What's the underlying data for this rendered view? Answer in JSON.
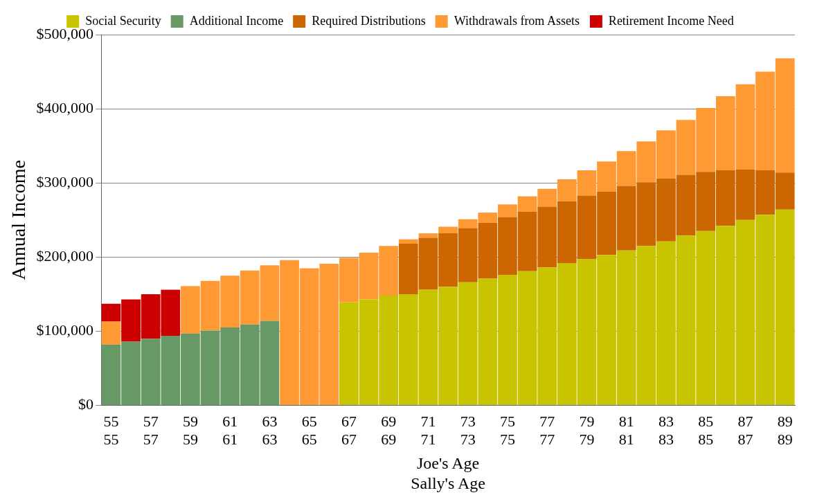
{
  "chart_data": {
    "type": "bar",
    "stacked": true,
    "xlabel": "Joe's Age\nSally's Age",
    "ylabel": "Annual Income",
    "categories": [
      "55\n55",
      null,
      "57\n57",
      null,
      "59\n59",
      null,
      "61\n61",
      null,
      "63\n63",
      null,
      "65\n65",
      null,
      "67\n67",
      null,
      "69\n69",
      null,
      "71\n71",
      null,
      "73\n73",
      null,
      "75\n75",
      null,
      "77\n77",
      null,
      "79\n79",
      null,
      "81\n81",
      null,
      "83\n83",
      null,
      "85\n85",
      null,
      "87\n87",
      null,
      "89\n89"
    ],
    "series": [
      {
        "name": "Social Security",
        "color": "#c8c400",
        "values": [
          null,
          null,
          null,
          null,
          null,
          null,
          null,
          null,
          null,
          null,
          null,
          null,
          139000,
          143000,
          148000,
          150000,
          156000,
          160000,
          166000,
          171000,
          176000,
          181000,
          186000,
          192000,
          197000,
          203000,
          209000,
          215000,
          221000,
          229000,
          235000,
          242000,
          250000,
          257000,
          264000
        ]
      },
      {
        "name": "Additional Income",
        "color": "#669966",
        "values": [
          82000,
          86000,
          90000,
          94000,
          97000,
          101000,
          105000,
          109000,
          114000,
          null,
          null,
          null,
          null,
          null,
          null,
          null,
          null,
          null,
          null,
          null,
          null,
          null,
          null,
          null,
          null,
          null,
          null,
          null,
          null,
          null,
          null,
          null,
          null,
          null,
          null
        ]
      },
      {
        "name": "Required Distributions",
        "color": "#cc6600",
        "values": [
          null,
          null,
          null,
          null,
          null,
          null,
          null,
          null,
          null,
          null,
          null,
          null,
          null,
          null,
          null,
          68000,
          70000,
          72000,
          73000,
          75000,
          78000,
          80000,
          82000,
          83000,
          86000,
          85000,
          87000,
          86000,
          85000,
          82000,
          80000,
          75000,
          68000,
          60000,
          50000
        ]
      },
      {
        "name": "Withdrawals from Assets",
        "color": "#ff9933",
        "values": [
          31000,
          null,
          null,
          null,
          64000,
          67000,
          70000,
          73000,
          75000,
          196000,
          185000,
          191000,
          60000,
          63000,
          67000,
          6000,
          6000,
          9000,
          12000,
          14000,
          17000,
          21000,
          24000,
          30000,
          34000,
          41000,
          47000,
          55000,
          65000,
          74000,
          86000,
          100000,
          115000,
          133000,
          154000
        ]
      },
      {
        "name": "Retirement Income Need",
        "color": "#cc0000",
        "values": [
          24000,
          57000,
          60000,
          62000,
          null,
          null,
          null,
          null,
          null,
          null,
          null,
          null,
          null,
          null,
          null,
          null,
          null,
          null,
          null,
          null,
          null,
          null,
          null,
          null,
          null,
          null,
          null,
          null,
          null,
          null,
          null,
          null,
          null,
          null,
          null
        ]
      }
    ],
    "ylim": [
      0,
      500000
    ],
    "yticks": [
      {
        "value": 0,
        "label": "$0"
      },
      {
        "value": 100000,
        "label": "$100,000"
      },
      {
        "value": 200000,
        "label": "$200,000"
      },
      {
        "value": 300000,
        "label": "$300,000"
      },
      {
        "value": 400000,
        "label": "$400,000"
      },
      {
        "value": 500000,
        "label": "$500,000"
      }
    ],
    "grid": "y",
    "legend": "top"
  }
}
